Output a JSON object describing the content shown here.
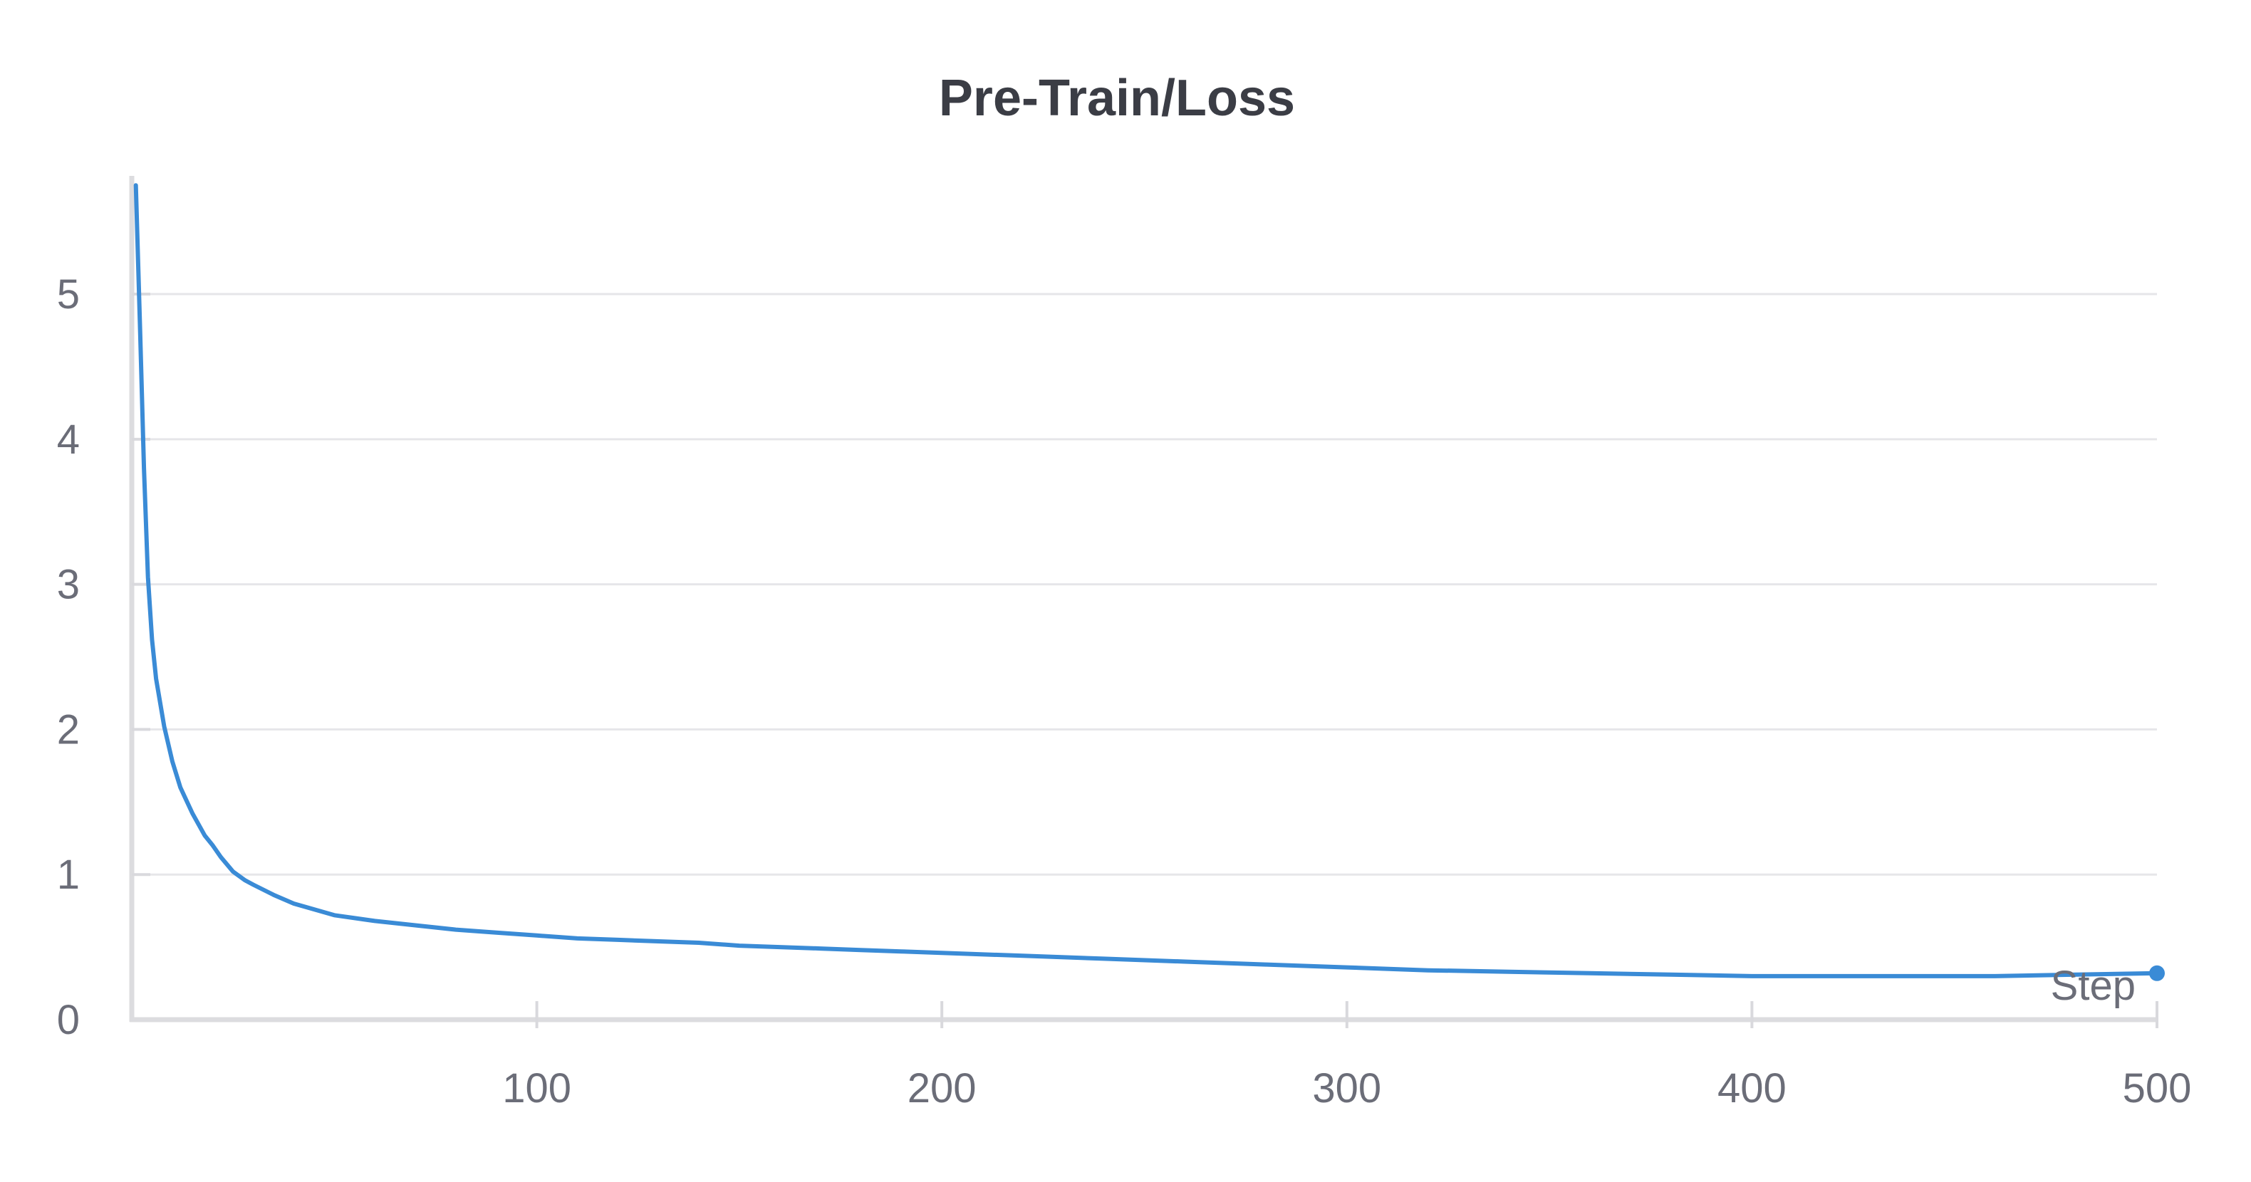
{
  "chart_data": {
    "type": "line",
    "title": "Pre-Train/Loss",
    "xlabel": "Step",
    "ylabel": "",
    "xlim": [
      0,
      500
    ],
    "ylim": [
      0,
      5.8
    ],
    "x_ticks": [
      100,
      200,
      300,
      400,
      500
    ],
    "x_tick_labels": [
      "100",
      "200",
      "300",
      "400",
      "500"
    ],
    "y_ticks": [
      0,
      1,
      2,
      3,
      4,
      5
    ],
    "y_tick_labels": [
      "0",
      "1",
      "2",
      "3",
      "4",
      "5"
    ],
    "grid": true,
    "line_color": "#3a8bd6",
    "series": [
      {
        "x": [
          1,
          2,
          3,
          4,
          5,
          6,
          8,
          10,
          12,
          15,
          18,
          20,
          22,
          25,
          28,
          30,
          35,
          40,
          45,
          50,
          60,
          70,
          80,
          90,
          100,
          110,
          120,
          130,
          140,
          150,
          160,
          170,
          180,
          190,
          200,
          220,
          240,
          260,
          280,
          300,
          320,
          340,
          360,
          380,
          400,
          420,
          440,
          460,
          480,
          500
        ],
        "y": [
          5.75,
          4.8,
          3.8,
          3.05,
          2.62,
          2.35,
          2.02,
          1.78,
          1.6,
          1.42,
          1.27,
          1.2,
          1.12,
          1.02,
          0.96,
          0.93,
          0.86,
          0.8,
          0.76,
          0.72,
          0.68,
          0.65,
          0.62,
          0.6,
          0.58,
          0.56,
          0.55,
          0.54,
          0.53,
          0.51,
          0.5,
          0.49,
          0.48,
          0.47,
          0.46,
          0.44,
          0.42,
          0.4,
          0.38,
          0.36,
          0.34,
          0.33,
          0.32,
          0.31,
          0.3,
          0.3,
          0.3,
          0.3,
          0.31,
          0.32
        ]
      }
    ]
  }
}
